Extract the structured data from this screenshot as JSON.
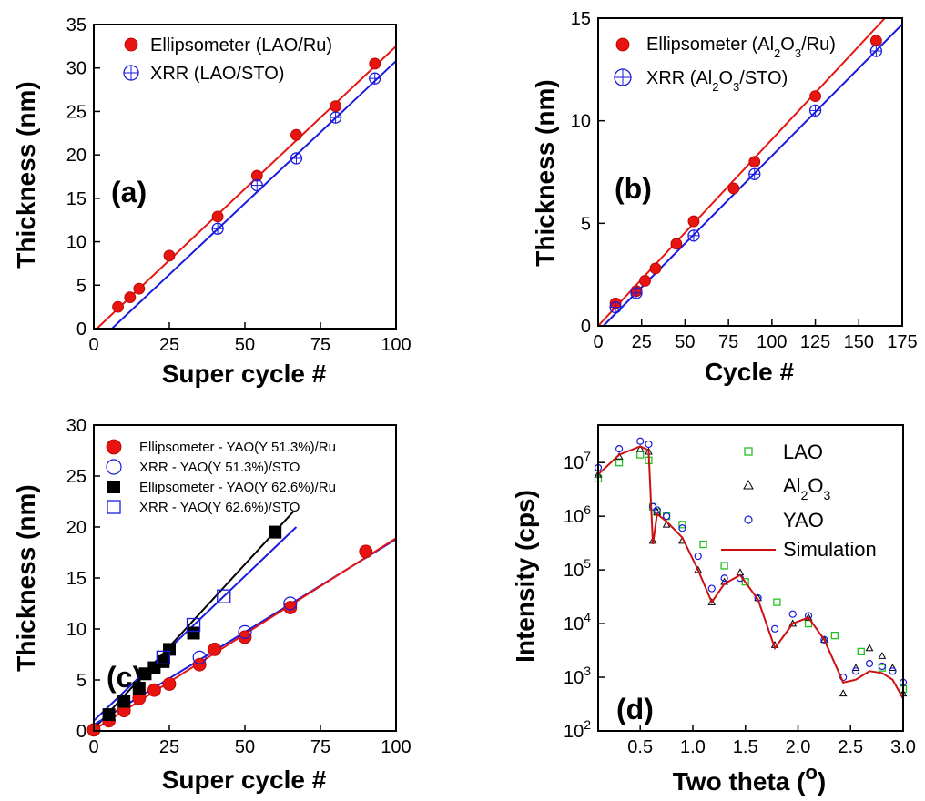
{
  "figure": {
    "title": ""
  },
  "chart_data": [
    {
      "type": "scatter",
      "panel_label": "(a)",
      "xlabel": "Super cycle #",
      "ylabel": "Thickness (nm)",
      "xlim": [
        0,
        100
      ],
      "ylim": [
        0,
        35
      ],
      "xticks": [
        0,
        25,
        50,
        75,
        100
      ],
      "yticks": [
        0,
        5,
        10,
        15,
        20,
        25,
        30,
        35
      ],
      "legend_position": "top-left",
      "series": [
        {
          "name": "Ellipsometer (LAO/Ru)",
          "marker": "filled-circle",
          "color": "#e8140f",
          "x": [
            8,
            12,
            15,
            25,
            41,
            54,
            67,
            80,
            93
          ],
          "y": [
            2.5,
            3.6,
            4.6,
            8.4,
            12.9,
            17.6,
            22.3,
            25.6,
            30.5
          ]
        },
        {
          "name": "XRR (LAO/STO)",
          "marker": "open-circle-cross",
          "color": "#1a1adf",
          "x": [
            41,
            54,
            67,
            80,
            93
          ],
          "y": [
            11.5,
            16.5,
            19.6,
            24.3,
            28.8
          ]
        }
      ],
      "fits": [
        {
          "color": "#e8140f",
          "x": [
            1,
            100
          ],
          "y": [
            0,
            32.5
          ]
        },
        {
          "color": "#1a1adf",
          "x": [
            6,
            100
          ],
          "y": [
            0,
            30.8
          ]
        }
      ]
    },
    {
      "type": "scatter",
      "panel_label": "(b)",
      "xlabel": "Cycle #",
      "ylabel": "Thickness (nm)",
      "xlim": [
        0,
        175
      ],
      "ylim": [
        0,
        15
      ],
      "xticks": [
        0,
        25,
        50,
        75,
        100,
        125,
        150,
        175
      ],
      "yticks": [
        0,
        5,
        10,
        15
      ],
      "legend_position": "top-left",
      "series": [
        {
          "name": "Ellipsometer (Al2O3/Ru)",
          "marker": "filled-circle",
          "color": "#e8140f",
          "x": [
            10,
            22,
            27,
            33,
            45,
            55,
            78,
            90,
            125,
            160
          ],
          "y": [
            1.1,
            1.7,
            2.2,
            2.8,
            4.0,
            5.1,
            6.7,
            8.0,
            11.2,
            13.9
          ]
        },
        {
          "name": "XRR (Al2O3/STO)",
          "marker": "open-circle-cross",
          "color": "#1a1adf",
          "x": [
            10,
            22,
            55,
            90,
            125,
            160
          ],
          "y": [
            0.9,
            1.6,
            4.4,
            7.4,
            10.5,
            13.4
          ]
        }
      ],
      "fits": [
        {
          "color": "#e8140f",
          "x": [
            0,
            165
          ],
          "y": [
            0,
            15
          ]
        },
        {
          "color": "#1a1adf",
          "x": [
            3,
            175
          ],
          "y": [
            0,
            14.7
          ]
        }
      ]
    },
    {
      "type": "scatter",
      "panel_label": "(c)",
      "xlabel": "Super cycle #",
      "ylabel": "Thickness (nm)",
      "xlim": [
        0,
        100
      ],
      "ylim": [
        0,
        30
      ],
      "xticks": [
        0,
        25,
        50,
        75,
        100
      ],
      "yticks": [
        0,
        5,
        10,
        15,
        20,
        25,
        30
      ],
      "legend_position": "top-left",
      "series": [
        {
          "name": "Ellipsometer - YAO(Y 51.3%)/Ru",
          "marker": "filled-circle",
          "color": "#e8140f",
          "x": [
            0,
            5,
            10,
            15,
            20,
            25,
            35,
            40,
            50,
            65,
            90
          ],
          "y": [
            0.1,
            1.0,
            2.0,
            3.2,
            4.0,
            4.6,
            6.5,
            8.0,
            9.2,
            12.1,
            17.6
          ]
        },
        {
          "name": "XRR - YAO(Y 51.3%)/STO",
          "marker": "open-circle",
          "color": "#1a1adf",
          "x": [
            35,
            50,
            65
          ],
          "y": [
            7.2,
            9.7,
            12.5
          ]
        },
        {
          "name": "Ellipsometer - YAO(Y 62.6%)/Ru",
          "marker": "filled-square",
          "color": "#000000",
          "x": [
            5,
            10,
            15,
            17,
            20,
            23,
            25,
            33,
            60
          ],
          "y": [
            1.6,
            2.9,
            4.2,
            5.6,
            6.2,
            6.8,
            8.0,
            9.6,
            19.5
          ]
        },
        {
          "name": "XRR - YAO(Y 62.6%)/STO",
          "marker": "open-square",
          "color": "#1a1adf",
          "x": [
            23,
            33,
            43
          ],
          "y": [
            7.2,
            10.4,
            13.2
          ]
        }
      ],
      "fits": [
        {
          "color": "#1a1adf",
          "x": [
            0,
            67
          ],
          "y": [
            1.0,
            20.0
          ]
        },
        {
          "color": "#000000",
          "x": [
            0,
            66
          ],
          "y": [
            0.2,
            21.5
          ]
        },
        {
          "color": "#1a1adf",
          "x": [
            0,
            100
          ],
          "y": [
            0.6,
            18.8
          ]
        },
        {
          "color": "#e8140f",
          "x": [
            0,
            100
          ],
          "y": [
            0.1,
            18.9
          ]
        }
      ]
    },
    {
      "type": "line",
      "panel_label": "(d)",
      "xlabel": "Two theta (o)",
      "ylabel": "Intensity (cps)",
      "xlim": [
        0.1,
        3.0
      ],
      "ylim": [
        100,
        50000000
      ],
      "yscale": "log",
      "xticks": [
        0.5,
        1.0,
        1.5,
        2.0,
        2.5,
        3.0
      ],
      "yticks": [
        100,
        1000,
        10000,
        100000,
        1000000,
        10000000
      ],
      "legend_position": "top-right",
      "series": [
        {
          "name": "LAO",
          "marker": "open-square",
          "color": "#22c022",
          "x": [
            0.1,
            0.3,
            0.5,
            0.58,
            0.62,
            0.66,
            0.75,
            0.9,
            1.1,
            1.3,
            1.5,
            1.8,
            2.1,
            2.35,
            2.6,
            2.8,
            3.0
          ],
          "y": [
            5000000,
            10000000,
            14000000,
            11000000,
            1500000,
            1200000,
            1000000,
            700000,
            300000,
            120000,
            60000,
            25000,
            10000,
            6000,
            3000,
            1500,
            600
          ]
        },
        {
          "name": "Al2O3",
          "marker": "open-triangle",
          "color": "#000000",
          "x": [
            0.1,
            0.3,
            0.5,
            0.58,
            0.62,
            0.66,
            0.75,
            0.9,
            1.05,
            1.18,
            1.3,
            1.45,
            1.62,
            1.78,
            1.95,
            2.1,
            2.25,
            2.43,
            2.55,
            2.68,
            2.8,
            2.9,
            3.0
          ],
          "y": [
            6000000,
            13000000,
            18000000,
            16000000,
            350000,
            1200000,
            700000,
            350000,
            100000,
            25000,
            60000,
            90000,
            30000,
            4000,
            10000,
            13000,
            5000,
            500,
            1500,
            3500,
            2500,
            1500,
            500
          ]
        },
        {
          "name": "YAO",
          "marker": "open-circle",
          "color": "#1a1adf",
          "x": [
            0.1,
            0.3,
            0.5,
            0.58,
            0.62,
            0.66,
            0.75,
            0.9,
            1.05,
            1.18,
            1.3,
            1.45,
            1.62,
            1.78,
            1.95,
            2.1,
            2.25,
            2.43,
            2.55,
            2.68,
            2.8,
            2.9,
            3.0
          ],
          "y": [
            8000000,
            18000000,
            25000000,
            22000000,
            1500000,
            1300000,
            1000000,
            600000,
            180000,
            45000,
            70000,
            70000,
            30000,
            8000,
            15000,
            14000,
            5000,
            1000,
            1300,
            1800,
            1600,
            1300,
            800
          ]
        },
        {
          "name": "Simulation",
          "marker": "line",
          "color": "#cc1010",
          "x": [
            0.1,
            0.3,
            0.5,
            0.58,
            0.62,
            0.66,
            0.75,
            0.9,
            1.05,
            1.18,
            1.3,
            1.45,
            1.62,
            1.78,
            1.95,
            2.1,
            2.25,
            2.43,
            2.55,
            2.68,
            2.8,
            2.9,
            3.0
          ],
          "y": [
            6000000,
            14000000,
            20000000,
            17000000,
            300000,
            1100000,
            800000,
            400000,
            100000,
            25000,
            55000,
            80000,
            28000,
            3500,
            10000,
            13000,
            5000,
            800,
            900,
            1300,
            1200,
            900,
            400
          ]
        }
      ]
    }
  ]
}
